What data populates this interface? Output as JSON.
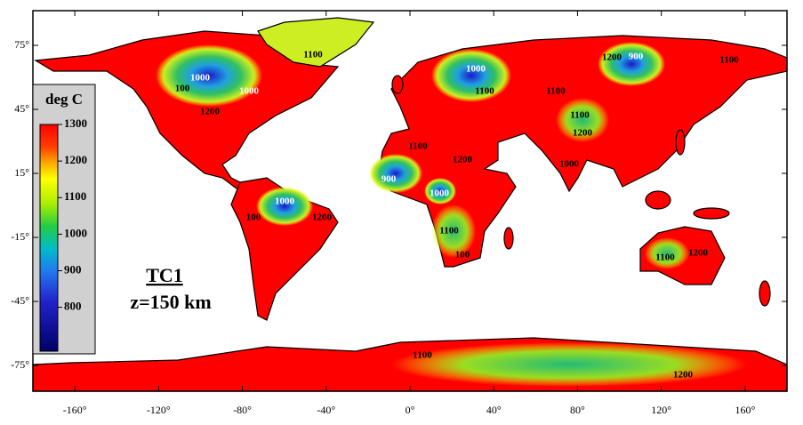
{
  "map": {
    "title": "TC1",
    "subtitle": "z=150 km",
    "x_ticks": [
      {
        "value": -160,
        "label": "-160°"
      },
      {
        "value": -120,
        "label": "-120°"
      },
      {
        "value": -80,
        "label": "-80°"
      },
      {
        "value": -40,
        "label": "-40°"
      },
      {
        "value": 0,
        "label": "0°"
      },
      {
        "value": 40,
        "label": "40°"
      },
      {
        "value": 80,
        "label": "80°"
      },
      {
        "value": 120,
        "label": "120°"
      },
      {
        "value": 160,
        "label": "160°"
      }
    ],
    "y_ticks": [
      {
        "value": 75,
        "label": "75°"
      },
      {
        "value": 45,
        "label": "45°"
      },
      {
        "value": 15,
        "label": "15°"
      },
      {
        "value": -15,
        "label": "-15°"
      },
      {
        "value": -45,
        "label": "-45°"
      },
      {
        "value": -75,
        "label": "-75°"
      }
    ],
    "colorbar": {
      "title": "deg C",
      "range": [
        680,
        1300
      ],
      "ticks": [
        1300,
        1200,
        1100,
        1000,
        900,
        800
      ]
    },
    "contour_labels": [
      "1100",
      "1000",
      "1000",
      "100",
      "1200",
      "1000",
      "1100",
      "1200",
      "900",
      "1100",
      "1100",
      "1100",
      "1200",
      "1100",
      "1200",
      "1000",
      "900",
      "1000",
      "1000",
      "1200",
      "100",
      "1100",
      "100",
      "1100",
      "1200",
      "1100",
      "1200"
    ]
  }
}
